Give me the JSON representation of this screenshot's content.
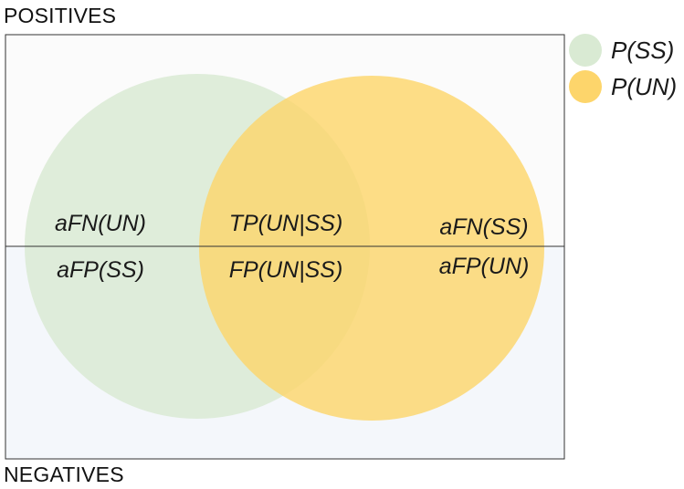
{
  "regions": {
    "positives": "POSITIVES",
    "negatives": "NEGATIVES"
  },
  "cells": {
    "left_top": "aFN(UN)",
    "left_bottom": "aFP(SS)",
    "center_top": "TP(UN|SS)",
    "center_bottom": "FP(UN|SS)",
    "right_top": "aFN(SS)",
    "right_bottom": "aFP(UN)"
  },
  "legend": [
    {
      "label": "P(SS)",
      "color": "#d9ead3"
    },
    {
      "label": "P(UN)",
      "color": "#fdd56b"
    }
  ],
  "colors": {
    "set_ss": "#d9ead3",
    "set_un": "#fdd56b",
    "positives_bg": "#fbfbfb",
    "negatives_bg": "#f4f7fb",
    "frame": "#333333"
  }
}
